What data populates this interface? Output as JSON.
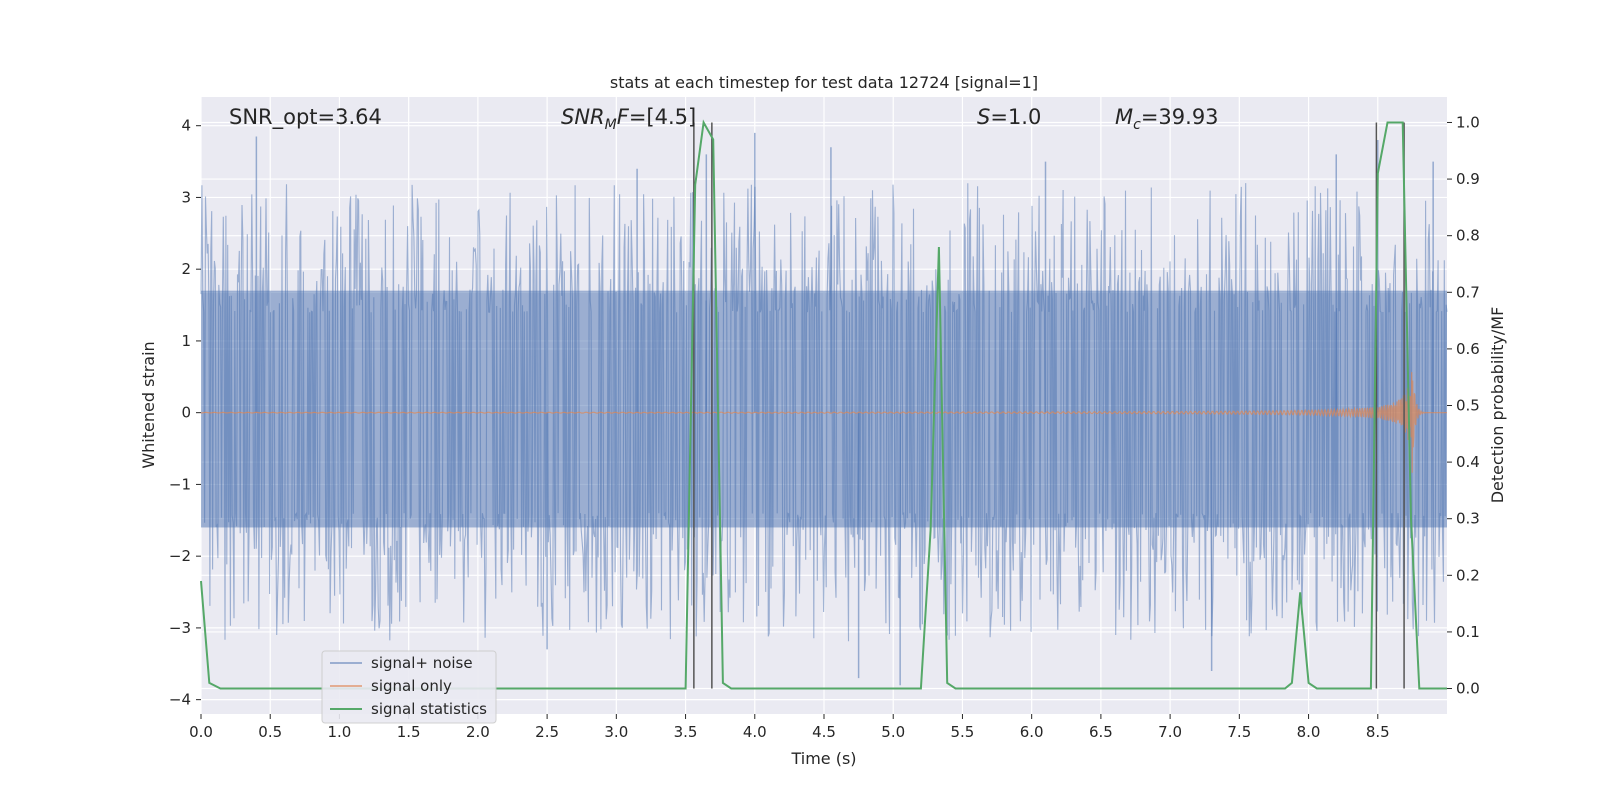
{
  "chart_data": {
    "type": "line",
    "title": "stats at each timestep for test data 12724 [signal=1]",
    "xlabel": "Time (s)",
    "ylabel": "Whitened strain",
    "y2label": "Detection probability/MF",
    "xlim": [
      0.0,
      9.0
    ],
    "ylim": [
      -4.2,
      4.4
    ],
    "y2lim": [
      -0.045,
      1.045
    ],
    "x_ticks": [
      "0.0",
      "0.5",
      "1.0",
      "1.5",
      "2.0",
      "2.5",
      "3.0",
      "3.5",
      "4.0",
      "4.5",
      "5.0",
      "5.5",
      "6.0",
      "6.5",
      "7.0",
      "7.5",
      "8.0",
      "8.5"
    ],
    "y_ticks": [
      "−4",
      "−3",
      "−2",
      "−1",
      "0",
      "1",
      "2",
      "3",
      "4"
    ],
    "y2_ticks": [
      "0.0",
      "0.1",
      "0.2",
      "0.3",
      "0.4",
      "0.5",
      "0.6",
      "0.7",
      "0.8",
      "0.9",
      "1.0"
    ],
    "grid": true,
    "legend_placement": "lower-left",
    "annotations": [
      {
        "x": 0.19,
        "text": "SNR_opt=3.64"
      },
      {
        "x": 2.6,
        "text": "SNRMF=[4.5]",
        "math": "snrmf"
      },
      {
        "x": 5.6,
        "text": "S=1.0",
        "math": "s"
      },
      {
        "x": 6.6,
        "text": "Mc=39.93",
        "math": "mc"
      }
    ],
    "series": [
      {
        "name": "signal+ noise",
        "color": "#4c72b0",
        "axis": "left",
        "description": "whitened noisy strain, approx. amplitude range -3.9 to 3.9",
        "band_min": -1.6,
        "band_max": 1.7,
        "peaks": [
          [
            0.4,
            3.85
          ],
          [
            3.15,
            3.4
          ],
          [
            3.65,
            3.6
          ],
          [
            4.0,
            3.9
          ],
          [
            4.75,
            -3.7
          ],
          [
            4.55,
            3.7
          ],
          [
            6.1,
            3.5
          ],
          [
            7.3,
            -3.6
          ],
          [
            8.2,
            3.6
          ],
          [
            8.5,
            3.8
          ],
          [
            8.9,
            3.5
          ],
          [
            2.5,
            -3.3
          ],
          [
            5.05,
            -3.8
          ]
        ]
      },
      {
        "name": "signal only",
        "color": "#dd8452",
        "axis": "left",
        "description": "chirp signal growing toward merger near t≈8.75 s",
        "merger_time": 8.75,
        "peak_amplitude": 0.9
      },
      {
        "name": "signal statistics",
        "color": "#55a868",
        "axis": "right",
        "x": [
          0.0,
          0.06,
          0.14,
          3.5,
          3.57,
          3.63,
          3.7,
          3.77,
          3.83,
          5.2,
          5.27,
          5.33,
          5.39,
          5.45,
          7.83,
          7.88,
          7.94,
          8.0,
          8.06,
          8.45,
          8.5,
          8.57,
          8.63,
          8.68,
          8.74,
          8.8,
          8.86,
          9.0
        ],
        "y": [
          0.19,
          0.01,
          0.0,
          0.0,
          0.89,
          1.0,
          0.97,
          0.01,
          0.0,
          0.0,
          0.28,
          0.78,
          0.01,
          0.0,
          0.0,
          0.01,
          0.17,
          0.01,
          0.0,
          0.0,
          0.91,
          1.0,
          1.0,
          1.0,
          0.3,
          0.0,
          0.0,
          0.0
        ]
      }
    ],
    "vlines": [
      3.56,
      3.69,
      8.49,
      8.69
    ]
  }
}
